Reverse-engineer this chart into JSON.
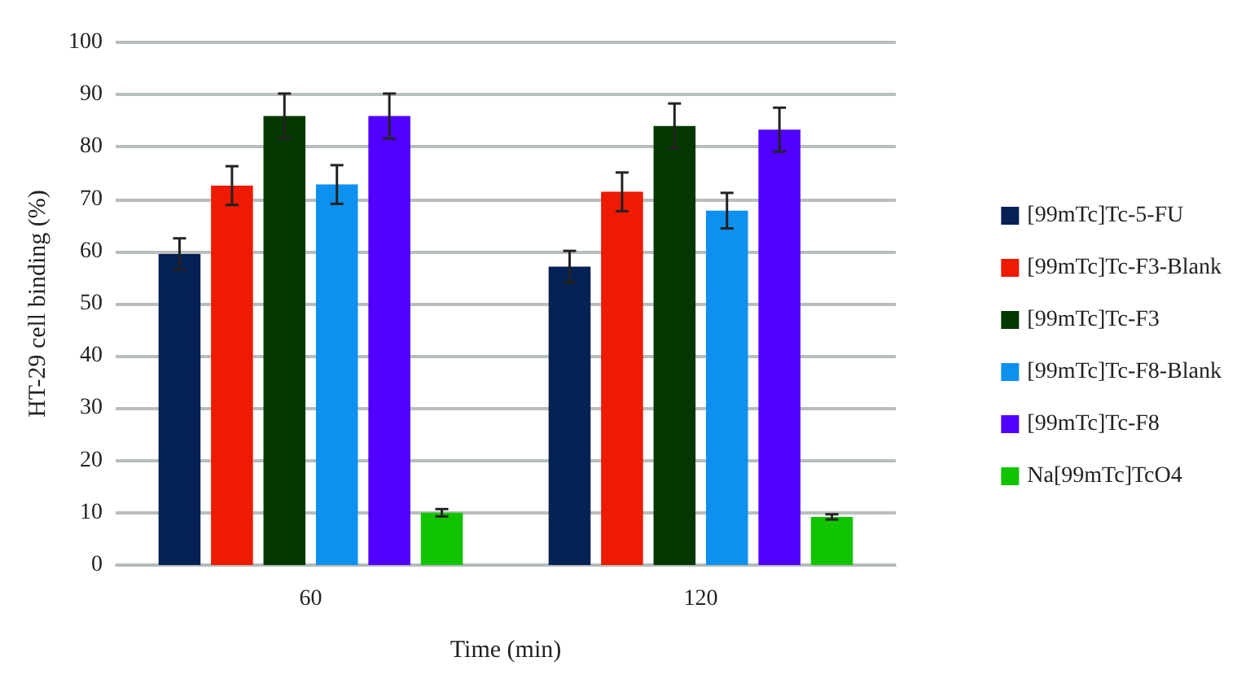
{
  "chart_data": {
    "type": "bar",
    "xlabel": "Time (min)",
    "ylabel": "HT-29 cell binding (%)",
    "categories": [
      "60",
      "120"
    ],
    "series": [
      {
        "name": "[99mTc]Tc-5-FU",
        "color": "#062153",
        "values": [
          59.5,
          57.1
        ],
        "errors": [
          3,
          3
        ]
      },
      {
        "name": "[99mTc]Tc-F3-Blank",
        "color": "#ee1a02",
        "values": [
          72.6,
          71.4
        ],
        "errors": [
          3.7,
          3.7
        ]
      },
      {
        "name": "[99mTc]Tc-F3",
        "color": "#053800",
        "values": [
          85.9,
          84.0
        ],
        "errors": [
          4.3,
          4.3
        ]
      },
      {
        "name": "[99mTc]Tc-F8-Blank",
        "color": "#0e90ef",
        "values": [
          72.8,
          67.8
        ],
        "errors": [
          3.7,
          3.4
        ]
      },
      {
        "name": "[99mTc]Tc-F8",
        "color": "#5000fe",
        "values": [
          85.9,
          83.3
        ],
        "errors": [
          4.3,
          4.2
        ]
      },
      {
        "name": "Na[99mTc]TcO4",
        "color": "#12c400",
        "values": [
          10.0,
          9.2
        ],
        "errors": [
          0.7,
          0.5
        ]
      }
    ],
    "ylim": [
      0,
      100
    ],
    "yticks": [
      0,
      10,
      20,
      30,
      40,
      50,
      60,
      70,
      80,
      90,
      100
    ],
    "grid": "y",
    "legend": "right"
  }
}
